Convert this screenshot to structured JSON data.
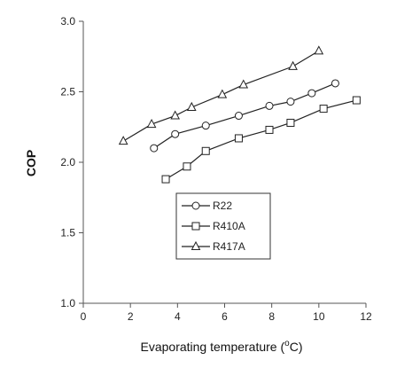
{
  "chart_data": {
    "type": "line",
    "xlabel": "Evaporating temperature (",
    "xlabel_sup": "o",
    "xlabel_unit": "C)",
    "ylabel": "COP",
    "xlim": [
      0,
      12
    ],
    "ylim": [
      1.0,
      3.0
    ],
    "xticks": [
      0,
      2,
      4,
      6,
      8,
      10,
      12
    ],
    "yticks": [
      1.0,
      1.5,
      2.0,
      2.5,
      3.0
    ],
    "ytick_labels": [
      "1.0",
      "1.5",
      "2.0",
      "2.5",
      "3.0"
    ],
    "xtick_labels": [
      "0",
      "2",
      "4",
      "6",
      "8",
      "10",
      "12"
    ],
    "grid": false,
    "legend_position": "center",
    "series": [
      {
        "name": "R22",
        "marker": "circle",
        "x": [
          3.0,
          3.9,
          5.2,
          6.6,
          7.9,
          8.8,
          9.7,
          10.7
        ],
        "y": [
          2.1,
          2.2,
          2.26,
          2.33,
          2.4,
          2.43,
          2.49,
          2.56
        ]
      },
      {
        "name": "R410A",
        "marker": "square",
        "x": [
          3.5,
          4.4,
          5.2,
          6.6,
          7.9,
          8.8,
          10.2,
          11.6
        ],
        "y": [
          1.88,
          1.97,
          2.08,
          2.17,
          2.23,
          2.28,
          2.38,
          2.44
        ]
      },
      {
        "name": "R417A",
        "marker": "triangle",
        "x": [
          1.7,
          2.9,
          3.9,
          4.6,
          5.9,
          6.8,
          8.9,
          10.0
        ],
        "y": [
          2.15,
          2.27,
          2.33,
          2.39,
          2.48,
          2.55,
          2.68,
          2.79
        ]
      }
    ]
  }
}
